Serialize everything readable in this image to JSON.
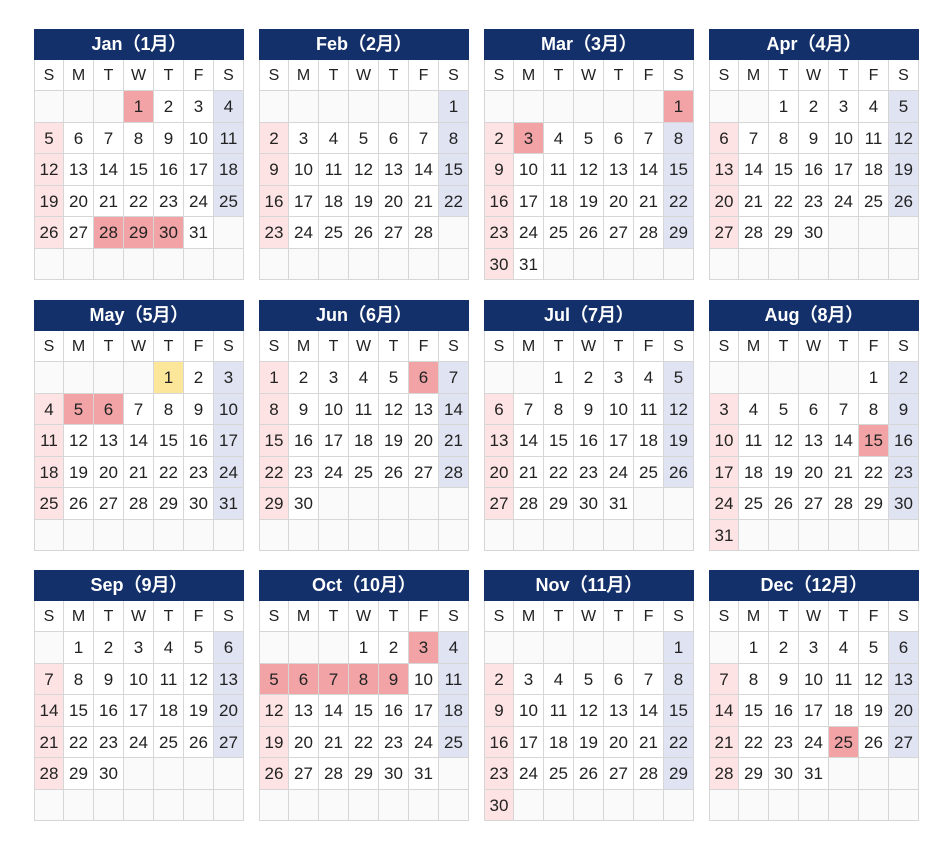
{
  "year_start_weekday": 3,
  "colors": {
    "header_bg": "#13306a",
    "sunday_bg": "#fde3e3",
    "saturday_bg": "#dfe3f2",
    "holiday_bg": "#f1a3a6",
    "special_bg": "#fbe69a"
  },
  "weekdays": [
    "S",
    "M",
    "T",
    "W",
    "T",
    "F",
    "S"
  ],
  "months": [
    {
      "title": "Jan（1月）",
      "start_weekday": 3,
      "days": 31,
      "holidays": [
        1,
        28,
        29,
        30
      ],
      "special": []
    },
    {
      "title": "Feb（2月）",
      "start_weekday": 6,
      "days": 28,
      "holidays": [],
      "special": []
    },
    {
      "title": "Mar（3月）",
      "start_weekday": 6,
      "days": 31,
      "holidays": [
        1,
        3
      ],
      "special": []
    },
    {
      "title": "Apr（4月）",
      "start_weekday": 2,
      "days": 30,
      "holidays": [],
      "special": []
    },
    {
      "title": "May（5月）",
      "start_weekday": 4,
      "days": 31,
      "holidays": [
        5,
        6
      ],
      "special": [
        1
      ]
    },
    {
      "title": "Jun（6月）",
      "start_weekday": 0,
      "days": 30,
      "holidays": [
        6
      ],
      "special": []
    },
    {
      "title": "Jul（7月）",
      "start_weekday": 2,
      "days": 31,
      "holidays": [],
      "special": []
    },
    {
      "title": "Aug（8月）",
      "start_weekday": 5,
      "days": 31,
      "holidays": [
        15
      ],
      "special": []
    },
    {
      "title": "Sep（9月）",
      "start_weekday": 1,
      "days": 30,
      "holidays": [],
      "special": []
    },
    {
      "title": "Oct（10月）",
      "start_weekday": 3,
      "days": 31,
      "holidays": [
        3,
        5,
        6,
        7,
        8,
        9
      ],
      "special": []
    },
    {
      "title": "Nov（11月）",
      "start_weekday": 6,
      "days": 30,
      "holidays": [],
      "special": []
    },
    {
      "title": "Dec（12月）",
      "start_weekday": 1,
      "days": 31,
      "holidays": [
        25
      ],
      "special": []
    }
  ]
}
